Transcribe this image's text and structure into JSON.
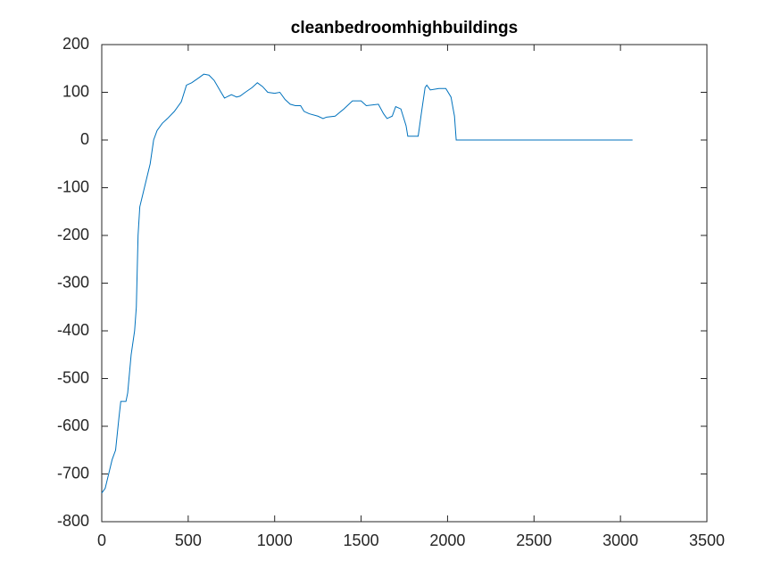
{
  "chart_data": {
    "type": "line",
    "title": "cleanbedroomhighbuildings",
    "color": "#0072bd",
    "x": [
      0,
      20,
      40,
      60,
      80,
      100,
      110,
      140,
      150,
      170,
      190,
      200,
      210,
      220,
      240,
      260,
      280,
      300,
      320,
      350,
      380,
      420,
      460,
      490,
      520,
      560,
      590,
      620,
      650,
      690,
      710,
      750,
      780,
      800,
      830,
      870,
      900,
      930,
      960,
      1000,
      1030,
      1060,
      1090,
      1120,
      1150,
      1170,
      1200,
      1250,
      1280,
      1300,
      1350,
      1400,
      1450,
      1500,
      1530,
      1600,
      1630,
      1650,
      1680,
      1700,
      1730,
      1760,
      1770,
      1830,
      1850,
      1870,
      1880,
      1900,
      1950,
      1990,
      2020,
      2040,
      2050,
      3070
    ],
    "values": [
      -740,
      -730,
      -700,
      -670,
      -650,
      -580,
      -548,
      -548,
      -530,
      -450,
      -400,
      -350,
      -200,
      -140,
      -110,
      -80,
      -50,
      0,
      20,
      35,
      45,
      60,
      80,
      115,
      120,
      130,
      138,
      136,
      125,
      100,
      88,
      95,
      90,
      92,
      100,
      110,
      120,
      112,
      100,
      98,
      100,
      85,
      75,
      72,
      72,
      60,
      55,
      50,
      45,
      48,
      50,
      65,
      82,
      82,
      72,
      75,
      55,
      45,
      50,
      70,
      65,
      30,
      8,
      8,
      60,
      110,
      115,
      105,
      108,
      108,
      90,
      50,
      0,
      0
    ],
    "xlim": [
      0,
      3500
    ],
    "xticks": [
      0,
      500,
      1000,
      1500,
      2000,
      2500,
      3000,
      3500
    ],
    "ylim": [
      -800,
      200
    ],
    "yticks": [
      -800,
      -700,
      -600,
      -500,
      -400,
      -300,
      -200,
      -100,
      0,
      100,
      200
    ]
  }
}
